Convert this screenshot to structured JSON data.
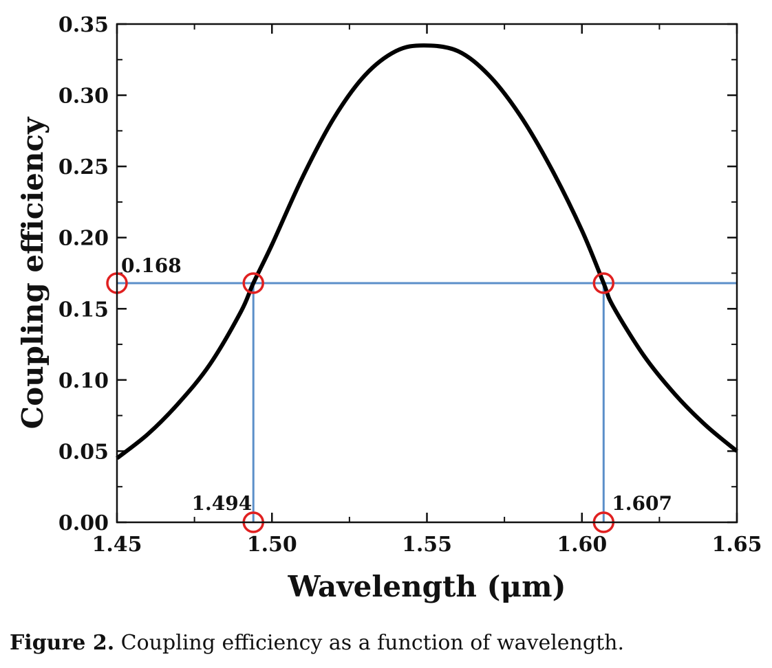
{
  "chart_data": {
    "type": "line",
    "xlabel": "Wavelength (μm)",
    "ylabel": "Coupling efficiency",
    "xlim": [
      1.45,
      1.65
    ],
    "ylim": [
      0.0,
      0.35
    ],
    "x_ticks": [
      "1.45",
      "1.50",
      "1.55",
      "1.60",
      "1.65"
    ],
    "y_ticks": [
      "0.00",
      "0.05",
      "0.10",
      "0.15",
      "0.20",
      "0.25",
      "0.30",
      "0.35"
    ],
    "series": [
      {
        "color": "#000000",
        "x": [
          1.45,
          1.46,
          1.47,
          1.48,
          1.49,
          1.494,
          1.5,
          1.51,
          1.52,
          1.53,
          1.54,
          1.549,
          1.56,
          1.57,
          1.58,
          1.59,
          1.6,
          1.607,
          1.61,
          1.62,
          1.63,
          1.64,
          1.65
        ],
        "y": [
          0.045,
          0.062,
          0.084,
          0.111,
          0.148,
          0.168,
          0.195,
          0.243,
          0.284,
          0.314,
          0.331,
          0.335,
          0.331,
          0.314,
          0.286,
          0.249,
          0.205,
          0.168,
          0.152,
          0.117,
          0.09,
          0.068,
          0.05
        ]
      }
    ],
    "guides": {
      "color": "#5b8fc9",
      "hline_y": 0.168,
      "vlines_x": [
        1.494,
        1.607
      ]
    },
    "markers": {
      "color": "#e02020",
      "points": [
        {
          "x": 1.45,
          "y": 0.168
        },
        {
          "x": 1.494,
          "y": 0.168
        },
        {
          "x": 1.607,
          "y": 0.168
        },
        {
          "x": 1.494,
          "y": 0.0
        },
        {
          "x": 1.607,
          "y": 0.0
        }
      ]
    },
    "annotations": [
      {
        "text": "0.168",
        "x": 1.45,
        "y": 0.168
      },
      {
        "text": "1.494",
        "x": 1.494,
        "y": 0.0
      },
      {
        "text": "1.607",
        "x": 1.607,
        "y": 0.0
      }
    ]
  },
  "caption": {
    "label": "Figure 2.",
    "text": " Coupling efficiency as a function of wavelength."
  }
}
